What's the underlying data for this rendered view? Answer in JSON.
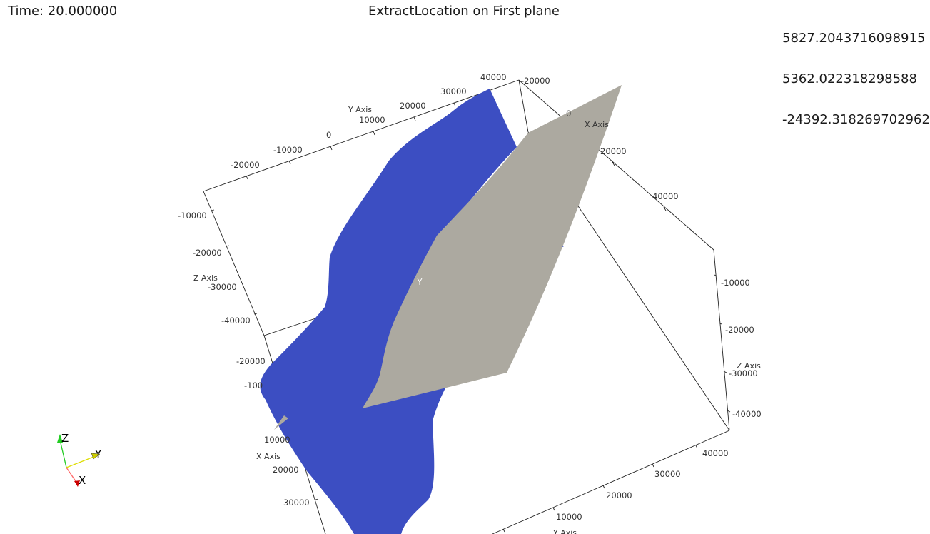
{
  "overlay": {
    "time": "Time: 20.000000",
    "title": "ExtractLocation on First plane",
    "coordinates": [
      "5827.2043716098915",
      "5362.022318298588",
      "-24392.318269702962"
    ]
  },
  "axes": {
    "y_axis": {
      "title": "Y Axis",
      "ticks": [
        "40000",
        "30000",
        "20000",
        "10000",
        "0",
        "-10000",
        "-20000"
      ]
    },
    "x_axis_top": {
      "title": "X Axis",
      "ticks": [
        "-20000",
        "0",
        "20000",
        "40000"
      ]
    },
    "z_axis_left": {
      "title": "Z Axis",
      "ticks": [
        "-10000",
        "-20000",
        "-30000",
        "-40000"
      ]
    },
    "z_axis_right": {
      "title": "Z Axis",
      "ticks": [
        "-10000",
        "-20000",
        "-30000",
        "-40000"
      ]
    },
    "x_axis_left": {
      "title": "X Axis",
      "ticks": [
        "-20000",
        "-100",
        "10000",
        "20000",
        "30000"
      ]
    },
    "y_axis_bottom": {
      "title": "Y Axis",
      "ticks": [
        "40000",
        "30000",
        "20000",
        "10000"
      ]
    }
  },
  "orientation": {
    "z": "Z",
    "y": "Y",
    "x": "X",
    "colors": {
      "z": "#22cc22",
      "y": "#dddd00",
      "x": "#cc0000"
    }
  },
  "surfaces": {
    "blue_color": "#3c4ec2",
    "gray_color": "#aca9a0"
  }
}
